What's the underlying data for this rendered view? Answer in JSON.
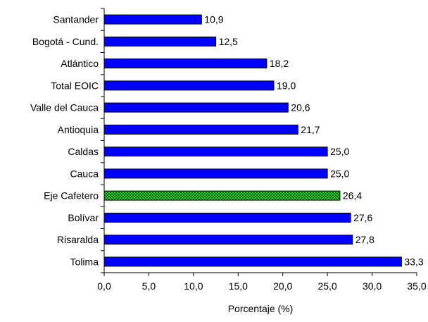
{
  "chart_data": {
    "type": "bar",
    "orientation": "horizontal",
    "categories": [
      "Santander",
      "Bogotá - Cund.",
      "Atlántico",
      "Total EOIC",
      "Valle del Cauca",
      "Antioquia",
      "Caldas",
      "Cauca",
      "Eje Cafetero",
      "Bolívar",
      "Risaralda",
      "Tolima"
    ],
    "values": [
      10.9,
      12.5,
      18.2,
      19.0,
      20.6,
      21.7,
      25.0,
      25.0,
      26.4,
      27.6,
      27.8,
      33.3
    ],
    "value_labels": [
      "10,9",
      "12,5",
      "18,2",
      "19,0",
      "20,6",
      "21,7",
      "25,0",
      "25,0",
      "26,4",
      "27,6",
      "27,8",
      "33,3"
    ],
    "highlight_category": "Eje Cafetero",
    "xlabel": "Porcentaje (%)",
    "xlim": [
      0,
      35
    ],
    "xticks": [
      0,
      5,
      10,
      15,
      20,
      25,
      30,
      35
    ],
    "xtick_labels": [
      "0,0",
      "5,0",
      "10,0",
      "15,0",
      "20,0",
      "25,0",
      "30,0",
      "35,0"
    ],
    "grid": false,
    "legend": "none",
    "colors": {
      "bar_fill": "#0000ff",
      "highlight_fill": "#33cc33",
      "highlight_pattern": "#006600",
      "bar_stroke": "#000000",
      "axis": "#000000"
    }
  }
}
